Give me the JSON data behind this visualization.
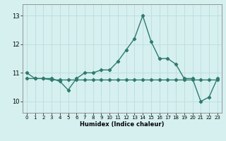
{
  "x": [
    0,
    1,
    2,
    3,
    4,
    5,
    6,
    7,
    8,
    9,
    10,
    11,
    12,
    13,
    14,
    15,
    16,
    17,
    18,
    19,
    20,
    21,
    22,
    23
  ],
  "y_line1": [
    11.0,
    10.8,
    10.8,
    10.8,
    10.7,
    10.4,
    10.8,
    11.0,
    11.0,
    11.1,
    11.1,
    11.4,
    11.8,
    12.2,
    13.0,
    12.1,
    11.5,
    11.5,
    11.3,
    10.8,
    10.8,
    10.0,
    10.15,
    10.8
  ],
  "y_line2": [
    10.8,
    10.8,
    10.8,
    10.75,
    10.75,
    10.75,
    10.75,
    10.75,
    10.75,
    10.75,
    10.75,
    10.75,
    10.75,
    10.75,
    10.75,
    10.75,
    10.75,
    10.75,
    10.75,
    10.75,
    10.75,
    10.75,
    10.75,
    10.75
  ],
  "bg_color": "#d6f0f0",
  "grid_color": "#c0dede",
  "line_color": "#2e7b6e",
  "xlabel": "Humidex (Indice chaleur)",
  "ylim": [
    9.6,
    13.4
  ],
  "xlim": [
    -0.5,
    23.5
  ],
  "xticks": [
    0,
    1,
    2,
    3,
    4,
    5,
    6,
    7,
    8,
    9,
    10,
    11,
    12,
    13,
    14,
    15,
    16,
    17,
    18,
    19,
    20,
    21,
    22,
    23
  ],
  "yticks": [
    10,
    11,
    12,
    13
  ],
  "ytick_top": 13,
  "marker": "D",
  "markersize": 2.2,
  "linewidth": 1.0
}
